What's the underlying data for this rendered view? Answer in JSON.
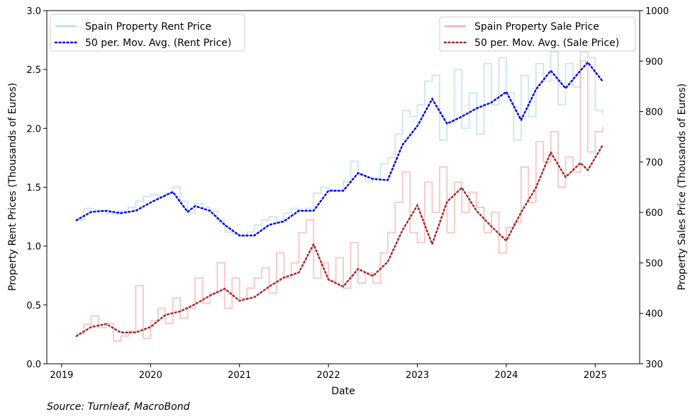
{
  "chart_data": {
    "type": "line",
    "xlabel": "Date",
    "ylabel_left": "Property Rent Prices (Thousands of Euros)",
    "ylabel_right": "Property Sales Price (Thousands of Euros)",
    "source": "Source: Turnleaf, MacroBond",
    "x_ticks": [
      "2019",
      "2020",
      "2021",
      "2022",
      "2023",
      "2024",
      "2025"
    ],
    "xlim": [
      "2018-11",
      "2025-07"
    ],
    "ylim_left": [
      0,
      3.0
    ],
    "yticks_left": [
      "0.0",
      "0.5",
      "1.0",
      "1.5",
      "2.0",
      "2.5",
      "3.0"
    ],
    "ylim_right": [
      300,
      1000
    ],
    "yticks_right": [
      "300",
      "400",
      "500",
      "600",
      "700",
      "800",
      "900",
      "1000"
    ],
    "grid": false,
    "legend_left": "top-left",
    "legend_right": "top-right",
    "series": [
      {
        "name": "Spain Property Rent Price",
        "axis": "left",
        "style": "solid",
        "color": "#add8e6",
        "start": "2019-03",
        "values": [
          1.22,
          1.32,
          1.31,
          1.3,
          1.28,
          1.27,
          1.3,
          1.33,
          1.38,
          1.42,
          1.44,
          1.42,
          1.45,
          1.5,
          1.38,
          1.28,
          1.36,
          1.33,
          1.3,
          1.22,
          1.12,
          1.1,
          1.08,
          1.12,
          1.18,
          1.22,
          1.25,
          1.2,
          1.28,
          1.32,
          1.3,
          1.32,
          1.45,
          1.5,
          1.48,
          1.47,
          1.55,
          1.72,
          1.6,
          1.55,
          1.58,
          1.7,
          1.75,
          1.95,
          2.15,
          2.1,
          2.2,
          2.4,
          2.45,
          1.9,
          2.05,
          2.5,
          2.0,
          2.3,
          1.95,
          2.55,
          2.2,
          2.6,
          2.3,
          1.9,
          2.45,
          2.1,
          2.55,
          2.4,
          2.65,
          2.2,
          2.55,
          2.35,
          2.65,
          2.6,
          2.15,
          2.12
        ]
      },
      {
        "name": "50 per. Mov. Avg. (Rent Price)",
        "axis": "left",
        "style": "dotted",
        "color": "#0000ff",
        "points": [
          [
            "2019-03",
            1.22
          ],
          [
            "2019-05",
            1.29
          ],
          [
            "2019-07",
            1.3
          ],
          [
            "2019-09",
            1.28
          ],
          [
            "2019-11",
            1.3
          ],
          [
            "2020-01",
            1.37
          ],
          [
            "2020-03",
            1.43
          ],
          [
            "2020-04",
            1.46
          ],
          [
            "2020-06",
            1.29
          ],
          [
            "2020-07",
            1.34
          ],
          [
            "2020-09",
            1.3
          ],
          [
            "2020-11",
            1.18
          ],
          [
            "2021-01",
            1.09
          ],
          [
            "2021-03",
            1.09
          ],
          [
            "2021-05",
            1.18
          ],
          [
            "2021-07",
            1.21
          ],
          [
            "2021-09",
            1.3
          ],
          [
            "2021-11",
            1.3
          ],
          [
            "2022-01",
            1.47
          ],
          [
            "2022-03",
            1.47
          ],
          [
            "2022-05",
            1.62
          ],
          [
            "2022-07",
            1.57
          ],
          [
            "2022-09",
            1.56
          ],
          [
            "2022-11",
            1.86
          ],
          [
            "2023-01",
            2.02
          ],
          [
            "2023-03",
            2.25
          ],
          [
            "2023-05",
            2.04
          ],
          [
            "2023-07",
            2.1
          ],
          [
            "2023-09",
            2.17
          ],
          [
            "2023-11",
            2.22
          ],
          [
            "2024-01",
            2.31
          ],
          [
            "2024-03",
            2.07
          ],
          [
            "2024-05",
            2.33
          ],
          [
            "2024-07",
            2.49
          ],
          [
            "2024-09",
            2.34
          ],
          [
            "2024-11",
            2.49
          ],
          [
            "2024-12",
            2.56
          ],
          [
            "2025-02",
            2.4
          ]
        ]
      },
      {
        "name": "Spain Property Sale Price",
        "axis": "right",
        "style": "solid",
        "color": "#f4a6a6",
        "start": "2019-03",
        "values": [
          360,
          378,
          395,
          372,
          380,
          345,
          355,
          365,
          455,
          350,
          385,
          410,
          380,
          430,
          390,
          410,
          470,
          420,
          440,
          500,
          410,
          470,
          430,
          450,
          470,
          490,
          440,
          520,
          470,
          500,
          560,
          585,
          470,
          500,
          465,
          510,
          450,
          540,
          460,
          480,
          460,
          520,
          560,
          620,
          680,
          560,
          540,
          660,
          600,
          690,
          560,
          660,
          600,
          640,
          610,
          560,
          600,
          520,
          570,
          580,
          690,
          620,
          740,
          700,
          760,
          650,
          710,
          680,
          900,
          720,
          760,
          770
        ]
      },
      {
        "name": "50 per. Mov. Avg. (Sale Price)",
        "axis": "right",
        "style": "dotted",
        "color": "#a52a2a",
        "points": [
          [
            "2019-03",
            355
          ],
          [
            "2019-05",
            373
          ],
          [
            "2019-07",
            379
          ],
          [
            "2019-09",
            362
          ],
          [
            "2019-11",
            362
          ],
          [
            "2020-01",
            373
          ],
          [
            "2020-03",
            397
          ],
          [
            "2020-05",
            404
          ],
          [
            "2020-07",
            418
          ],
          [
            "2020-09",
            435
          ],
          [
            "2020-11",
            449
          ],
          [
            "2021-01",
            425
          ],
          [
            "2021-03",
            432
          ],
          [
            "2021-05",
            453
          ],
          [
            "2021-07",
            471
          ],
          [
            "2021-09",
            481
          ],
          [
            "2021-11",
            537
          ],
          [
            "2022-01",
            467
          ],
          [
            "2022-03",
            453
          ],
          [
            "2022-05",
            488
          ],
          [
            "2022-07",
            474
          ],
          [
            "2022-09",
            502
          ],
          [
            "2022-11",
            565
          ],
          [
            "2023-01",
            614
          ],
          [
            "2023-03",
            537
          ],
          [
            "2023-05",
            621
          ],
          [
            "2023-07",
            649
          ],
          [
            "2023-09",
            603
          ],
          [
            "2023-11",
            572
          ],
          [
            "2024-01",
            544
          ],
          [
            "2024-03",
            600
          ],
          [
            "2024-05",
            649
          ],
          [
            "2024-07",
            719
          ],
          [
            "2024-09",
            670
          ],
          [
            "2024-11",
            698
          ],
          [
            "2024-12",
            684
          ],
          [
            "2025-02",
            733
          ]
        ]
      }
    ]
  }
}
